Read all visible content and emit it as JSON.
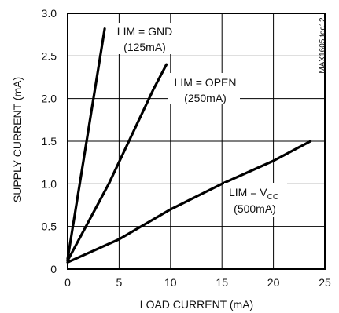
{
  "chart_data": {
    "type": "line",
    "xlabel": "LOAD CURRENT (mA)",
    "ylabel": "SUPPLY CURRENT (mA)",
    "xlim": [
      0,
      25
    ],
    "ylim": [
      0,
      3.0
    ],
    "x_ticks": [
      "0",
      "5",
      "10",
      "15",
      "20",
      "25"
    ],
    "y_ticks": [
      "0",
      "0.5",
      "1.0",
      "1.5",
      "2.0",
      "2.5",
      "3.0"
    ],
    "grid": true,
    "series": [
      {
        "values": [
          [
            0,
            0.12
          ],
          [
            3.6,
            2.82
          ]
        ]
      },
      {
        "values": [
          [
            0,
            0.1
          ],
          [
            4,
            1.0
          ],
          [
            8.3,
            2.1
          ],
          [
            9.6,
            2.4
          ]
        ]
      },
      {
        "values": [
          [
            0,
            0.08
          ],
          [
            5,
            0.35
          ],
          [
            10,
            0.7
          ],
          [
            15,
            1.0
          ],
          [
            20,
            1.27
          ],
          [
            23.6,
            1.5
          ]
        ]
      }
    ],
    "annotations": [
      {
        "lines": [
          "LIM = GND",
          "(125mA)"
        ]
      },
      {
        "lines": [
          "LIM = OPEN",
          "(250mA)"
        ]
      },
      {
        "lines": [
          "LIM = V",
          "CC",
          "(500mA)"
        ]
      }
    ],
    "figure_code": "MAX1605 toc12"
  }
}
